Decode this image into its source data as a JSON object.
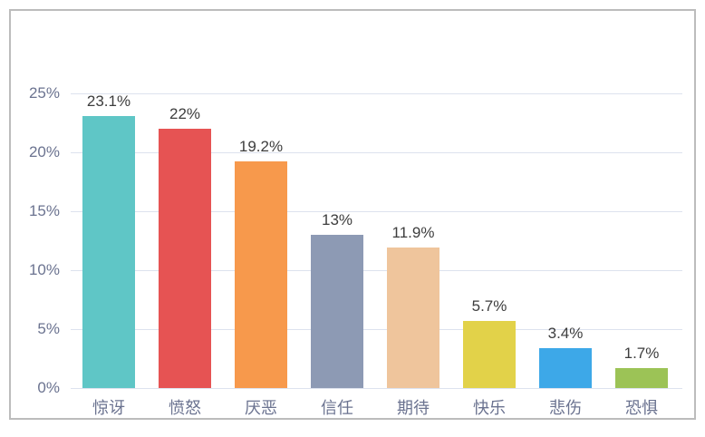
{
  "chart_data": {
    "type": "bar",
    "title": "",
    "xlabel": "",
    "ylabel": "",
    "categories": [
      "惊讶",
      "愤怒",
      "厌恶",
      "信任",
      "期待",
      "快乐",
      "悲伤",
      "恐惧"
    ],
    "values": [
      23.1,
      22,
      19.2,
      13,
      11.9,
      5.7,
      3.4,
      1.7
    ],
    "value_labels": [
      "23.1%",
      "22%",
      "19.2%",
      "13%",
      "11.9%",
      "5.7%",
      "3.4%",
      "1.7%"
    ],
    "bar_colors": [
      "#5fc6c6",
      "#e65353",
      "#f7994c",
      "#8d9ab4",
      "#efc59c",
      "#e2d249",
      "#3da8e8",
      "#9cc356"
    ],
    "y_ticks": [
      {
        "label": "25%",
        "value": 25
      },
      {
        "label": "20%",
        "value": 20
      },
      {
        "label": "15%",
        "value": 15
      },
      {
        "label": "10%",
        "value": 10
      },
      {
        "label": "5%",
        "value": 5
      },
      {
        "label": "0%",
        "value": 0
      }
    ],
    "ylim": [
      0,
      25
    ],
    "grid": true,
    "legend": false
  },
  "style": {
    "frame_border_color": "#bcbcbc",
    "gridline_color": "#dde2ee",
    "axis_text_color": "#6b7390",
    "value_text_color": "#3d3d3d",
    "background_color": "#ffffff"
  }
}
